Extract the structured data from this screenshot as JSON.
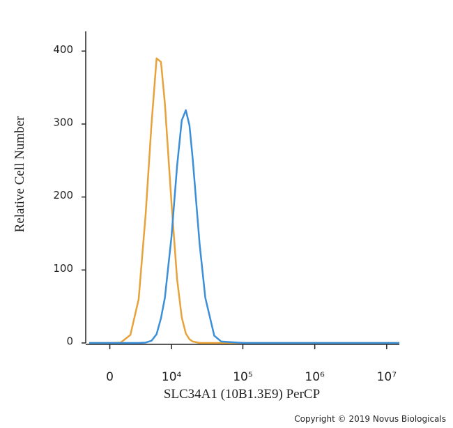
{
  "chart_data": {
    "type": "line",
    "xlabel": "SLC34A1 (10B1.3E9) PerCP",
    "ylabel": "Relative Cell Number",
    "x_scale": "biexponential",
    "x": [
      -2000,
      0,
      1000,
      2000,
      3000,
      4000,
      5000,
      6000,
      7000,
      8000,
      10000,
      12000,
      14000,
      16000,
      18000,
      20000,
      25000,
      30000,
      40000,
      50000,
      100000,
      1000000,
      15000000
    ],
    "series": [
      {
        "color": "#e8a23a",
        "values": [
          0,
          0,
          0.5,
          11,
          60,
          176,
          300,
          390,
          385,
          328,
          191,
          88,
          35,
          13,
          5,
          2,
          0,
          0,
          0,
          0,
          0,
          0,
          0
        ]
      },
      {
        "color": "#3b8fd8",
        "values": [
          0,
          0,
          0,
          0,
          0,
          0.5,
          3,
          12,
          34,
          62,
          146,
          242,
          305,
          319,
          298,
          252,
          135,
          62,
          10,
          2,
          0,
          0,
          0
        ]
      }
    ],
    "xlim": [
      -2400,
      15000000
    ],
    "xticks": [
      0,
      {
        "value": 10000,
        "label": "10⁴"
      },
      {
        "value": 100000,
        "label": "10⁵"
      },
      {
        "value": 1000000,
        "label": "10⁶"
      },
      {
        "value": 10000000,
        "label": "10⁷"
      }
    ],
    "ylim": [
      0,
      427
    ],
    "yticks": [
      0,
      100,
      200,
      300,
      400
    ],
    "copyright": "Copyright © 2019 Novus Biologicals"
  }
}
